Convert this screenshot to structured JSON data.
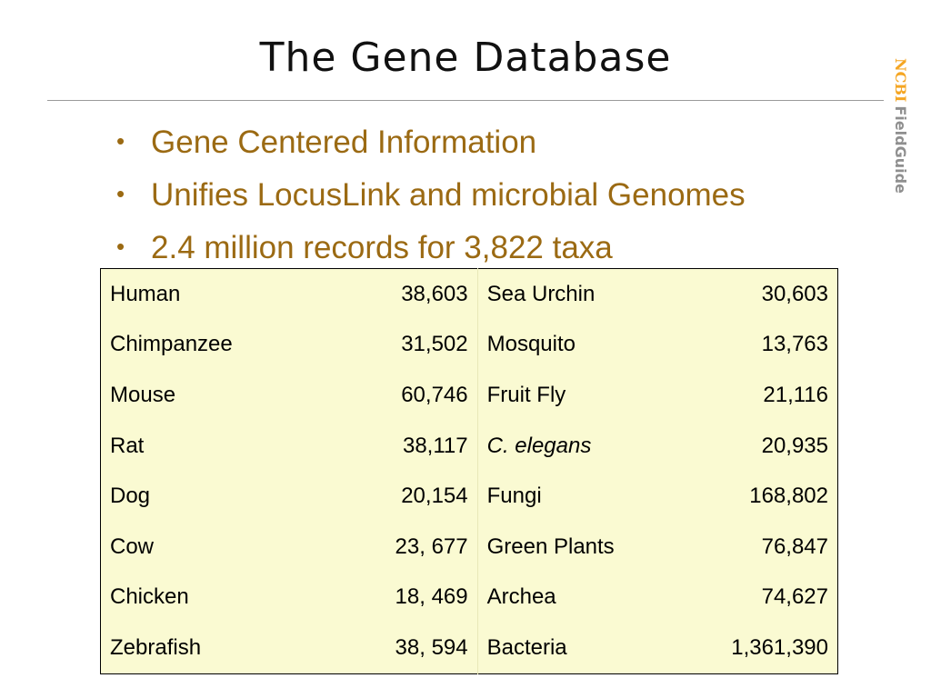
{
  "slide": {
    "title": "The Gene Database",
    "logo": {
      "ncbi": "NCBI",
      "fieldguide": "FieldGuide"
    },
    "bullets": [
      "Gene Centered Information",
      "Unifies LocusLink and microbial Genomes",
      "2.4 million records for 3,822 taxa"
    ]
  },
  "colors": {
    "bullet_text": "#9b6a13",
    "table_background": "#fafad2",
    "logo_accent": "#f5a623",
    "logo_gray": "#8f8f8f"
  },
  "table": {
    "rows": [
      {
        "left_name": "Human",
        "left_count": "38,603",
        "right_name": "Sea Urchin",
        "right_count": "30,603"
      },
      {
        "left_name": "Chimpanzee",
        "left_count": "31,502",
        "right_name": "Mosquito",
        "right_count": "13,763"
      },
      {
        "left_name": "Mouse",
        "left_count": "60,746",
        "right_name": "Fruit Fly",
        "right_count": "21,116"
      },
      {
        "left_name": "Rat",
        "left_count": "38,117",
        "right_name": "C. elegans",
        "right_count": "20,935"
      },
      {
        "left_name": "Dog",
        "left_count": "20,154",
        "right_name": "Fungi",
        "right_count": "168,802"
      },
      {
        "left_name": "Cow",
        "left_count": "23, 677",
        "right_name": "Green Plants",
        "right_count": "76,847"
      },
      {
        "left_name": "Chicken",
        "left_count": "18, 469",
        "right_name": "Archea",
        "right_count": "74,627"
      },
      {
        "left_name": "Zebrafish",
        "left_count": "38, 594",
        "right_name": "Bacteria",
        "right_count": "1,361,390"
      }
    ]
  }
}
